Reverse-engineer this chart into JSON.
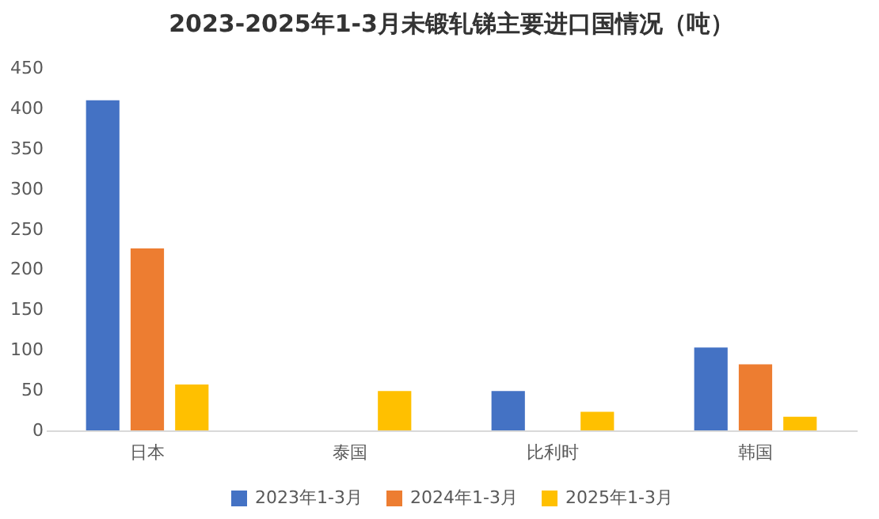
{
  "chart_data": {
    "type": "bar",
    "title": "2023-2025年1-3月未锻轧锑主要进口国情况（吨）",
    "categories": [
      "日本",
      "泰国",
      "比利时",
      "韩国"
    ],
    "series": [
      {
        "name": "2023年1-3月",
        "color": "#4472c4",
        "values": [
          410,
          null,
          49,
          103
        ]
      },
      {
        "name": "2024年1-3月",
        "color": "#ed7d31",
        "values": [
          226,
          null,
          null,
          82
        ]
      },
      {
        "name": "2025年1-3月",
        "color": "#ffc000",
        "values": [
          57,
          49,
          23,
          17
        ]
      }
    ],
    "ylim": [
      0,
      450
    ],
    "yticks": [
      0,
      50,
      100,
      150,
      200,
      250,
      300,
      350,
      400,
      450
    ],
    "grid": false,
    "legend": "bottom"
  }
}
